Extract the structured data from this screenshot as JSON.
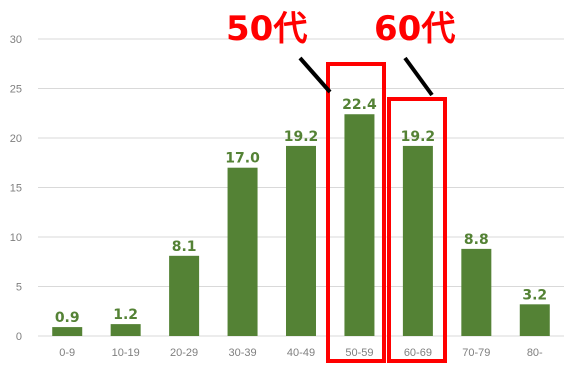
{
  "chart_data": {
    "type": "bar",
    "categories": [
      "0-9",
      "10-19",
      "20-29",
      "30-39",
      "40-49",
      "50-59",
      "60-69",
      "70-79",
      "80-"
    ],
    "values": [
      0.9,
      1.2,
      8.1,
      17.0,
      19.2,
      22.4,
      19.2,
      8.8,
      3.2
    ],
    "data_labels": [
      "0.9",
      "1.2",
      "8.1",
      "17.0",
      "19.2",
      "22.4",
      "19.2",
      "8.8",
      "3.2"
    ],
    "ylim": [
      0,
      30
    ],
    "yticks": [
      "0",
      "5",
      "10",
      "15",
      "20",
      "25",
      "30"
    ],
    "grid": true,
    "colors": {
      "bar": "#548235",
      "label": "#548235",
      "highlight": "#ff0000",
      "grid": "#d9d9d9",
      "tick": "#7f7f7f"
    },
    "annotations": [
      {
        "text": "50代",
        "target_category": "50-59"
      },
      {
        "text": "60代",
        "target_category": "60-69"
      }
    ]
  }
}
